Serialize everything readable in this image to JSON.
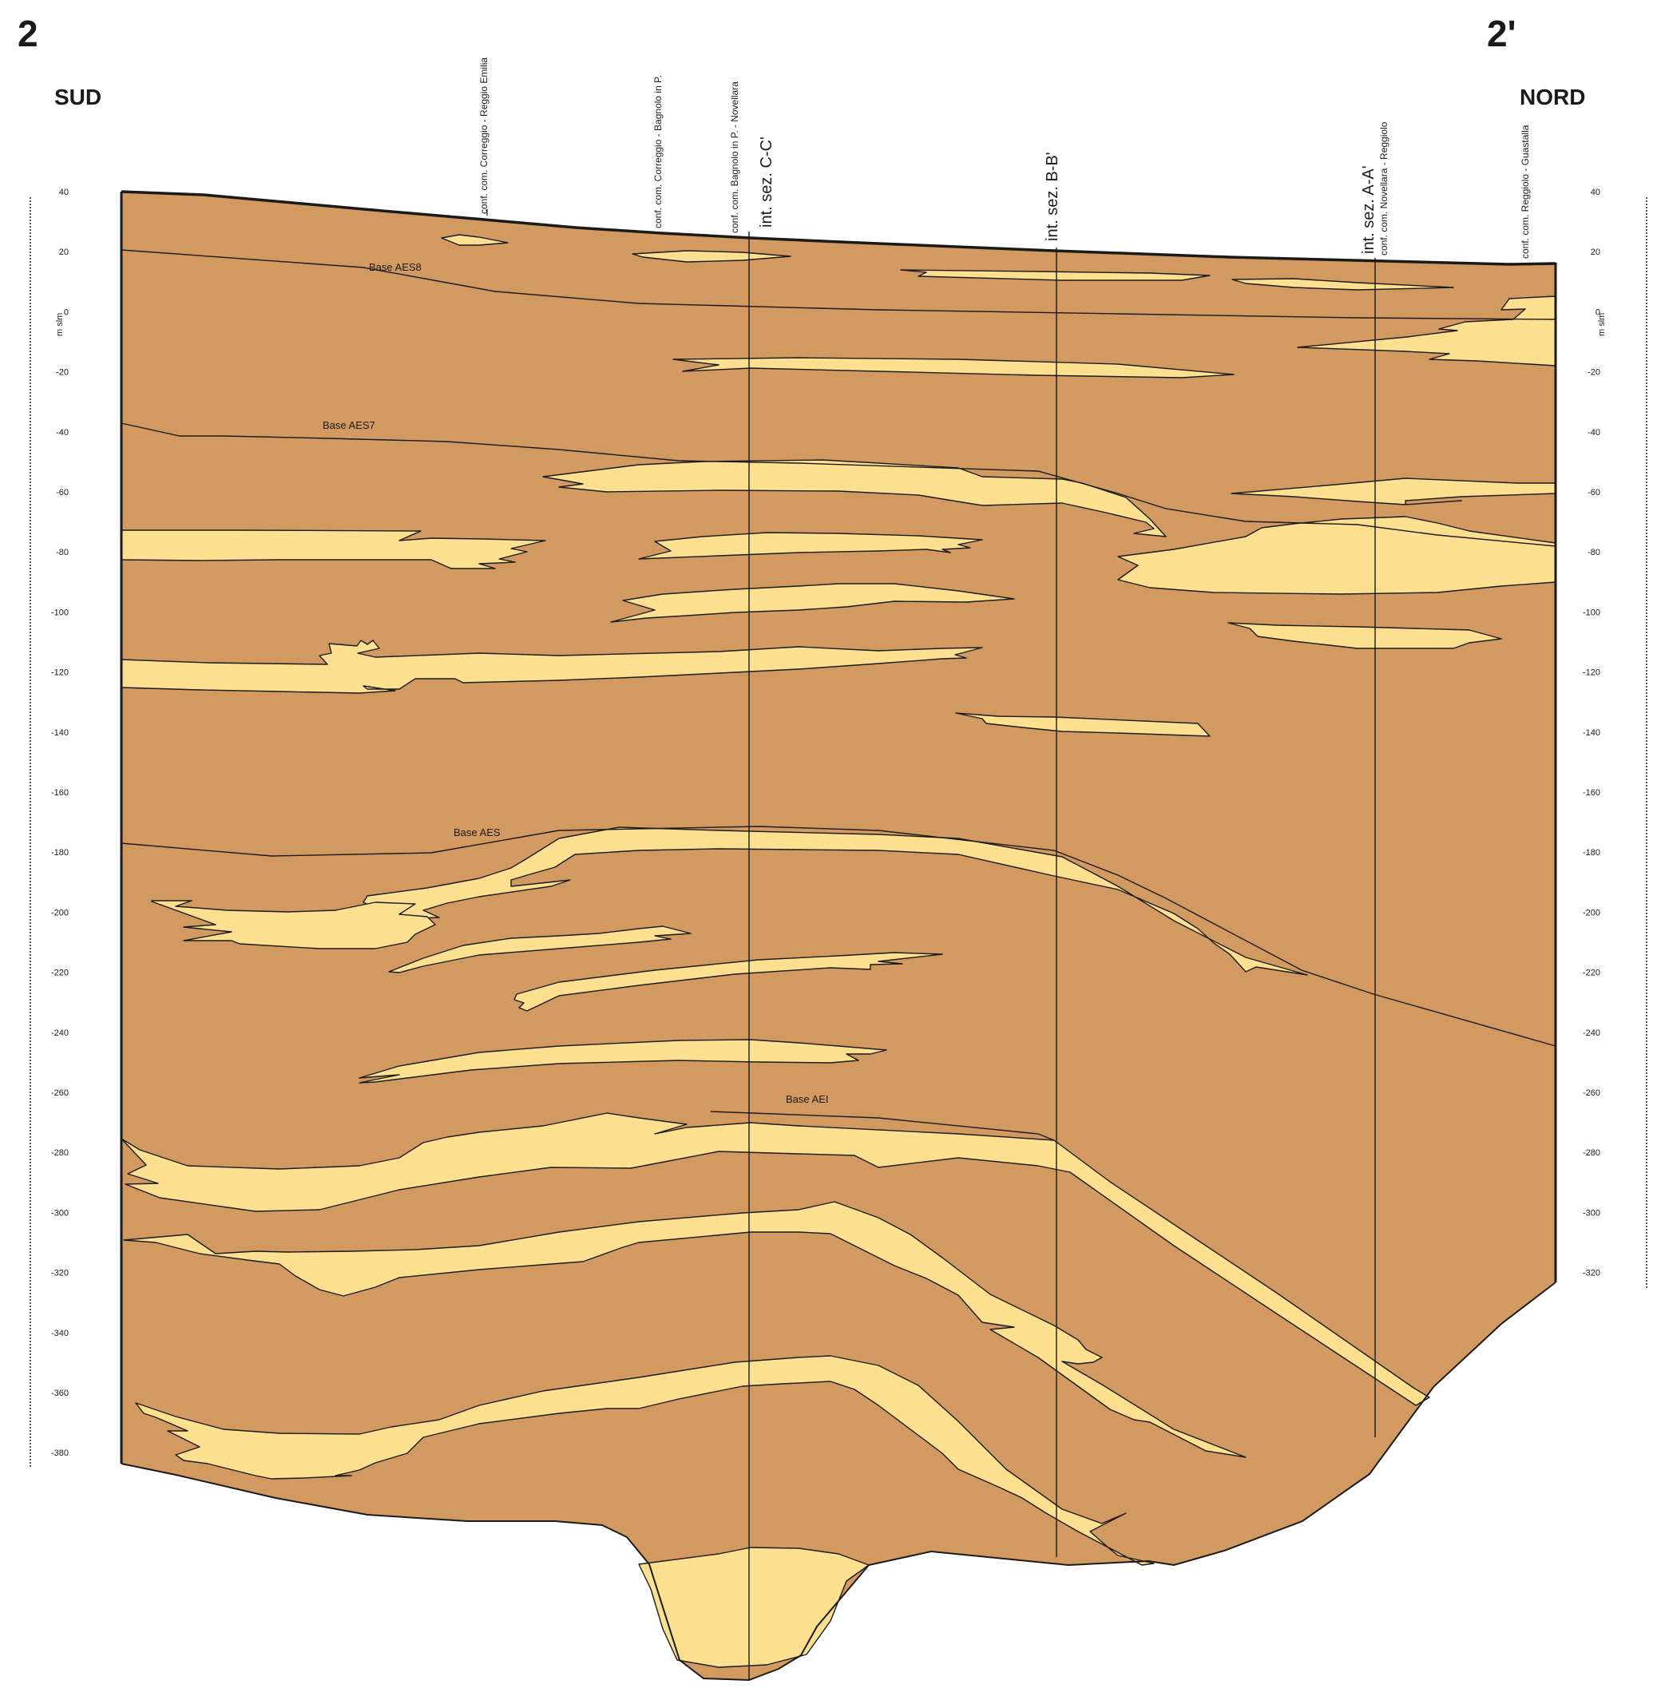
{
  "section": {
    "end_left": "2",
    "end_right": "2'",
    "dir_left": "SUD",
    "dir_right": "NORD",
    "axis_unit": "m slm",
    "ticks": [
      "40",
      "20",
      "0",
      "-20",
      "-40",
      "-60",
      "-80",
      "-100",
      "-120",
      "-140",
      "-160",
      "-180",
      "-200",
      "-220",
      "-240",
      "-260",
      "-280",
      "-300",
      "-320",
      "-340",
      "-360",
      "-380"
    ],
    "ticks_right": [
      "40",
      "20",
      "0",
      "-20",
      "-40",
      "-60",
      "-80",
      "-100",
      "-120",
      "-140",
      "-160",
      "-180",
      "-200",
      "-220",
      "-240",
      "-260",
      "-280",
      "-300",
      "-320"
    ],
    "boundaries": {
      "aes8": "Base AES8",
      "aes7": "Base AES7",
      "aes": "Base AES",
      "aei": "Base AEI"
    },
    "verticals": {
      "v1": "conf. com. Correggio - Reggio Emilia",
      "v2": "conf. com. Correggio - Bagnolo in P.",
      "v3": "conf. com. Bagnolo in P. - Novellara",
      "v4": "int. sez. C-C'",
      "v5": "int. sez. B-B'",
      "v6": "int. sez. A-A'",
      "v7": "conf. com. Novellara - Reggiolo",
      "v8": "conf. com. Reggiolo - Guastalla"
    },
    "colors": {
      "clay": "#d29a60",
      "sand": "#fde08f",
      "line": "#1a1a1a"
    }
  }
}
